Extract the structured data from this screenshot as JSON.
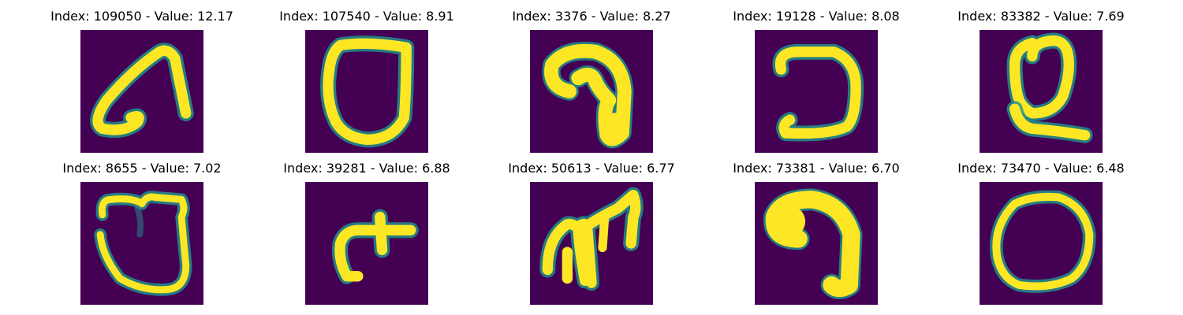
{
  "colors": {
    "background": "#440154",
    "mid": "#21918c",
    "stroke": "#fde725"
  },
  "panels": [
    {
      "title": "Index: 109050 - Value: 12.17",
      "glyph": "hook-left"
    },
    {
      "title": "Index: 107540 - Value: 8.91",
      "glyph": "loop-o"
    },
    {
      "title": "Index: 3376 - Value: 8.27",
      "glyph": "number-nine"
    },
    {
      "title": "Index: 19128 - Value: 8.08",
      "glyph": "reverse-c"
    },
    {
      "title": "Index: 83382 - Value: 7.69",
      "glyph": "letter-q"
    },
    {
      "title": "Index: 8655 - Value: 7.02",
      "glyph": "heart-loop"
    },
    {
      "title": "Index: 39281 - Value: 6.88",
      "glyph": "arrow-hook"
    },
    {
      "title": "Index: 50613 - Value: 6.77",
      "glyph": "branch-arrow"
    },
    {
      "title": "Index: 73381 - Value: 6.70",
      "glyph": "thick-nine"
    },
    {
      "title": "Index: 73470 - Value: 6.48",
      "glyph": "thin-oval"
    }
  ]
}
